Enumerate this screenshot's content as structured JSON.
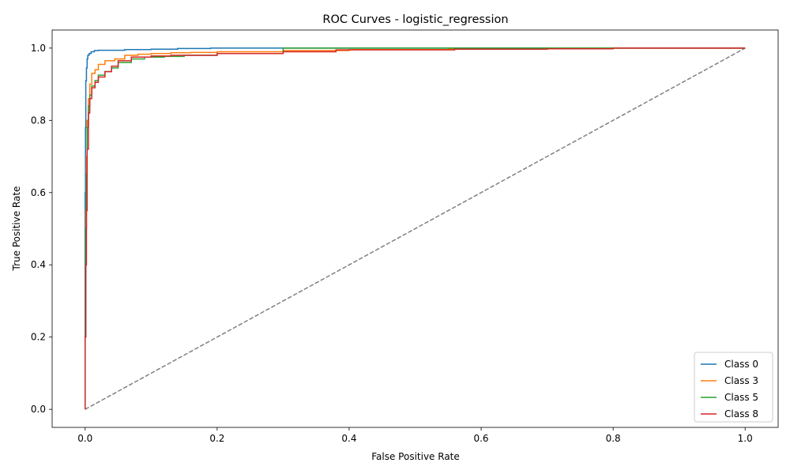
{
  "chart_data": {
    "type": "line",
    "title": "ROC Curves - logistic_regression",
    "xlabel": "False Positive Rate",
    "ylabel": "True Positive Rate",
    "xlim": [
      -0.05,
      1.05
    ],
    "ylim": [
      -0.05,
      1.05
    ],
    "x_ticks": [
      "0.0",
      "0.2",
      "0.4",
      "0.6",
      "0.8",
      "1.0"
    ],
    "y_ticks": [
      "0.0",
      "0.2",
      "0.4",
      "0.6",
      "0.8",
      "1.0"
    ],
    "grid": false,
    "legend": "lower-right",
    "diagonal": {
      "x": [
        0,
        1
      ],
      "y": [
        0,
        1
      ],
      "color": "#808080",
      "style": "dashed"
    },
    "series": [
      {
        "name": "Class 0",
        "color": "#1f77b4",
        "x": [
          0,
          0.0005,
          0.001,
          0.002,
          0.003,
          0.004,
          0.006,
          0.009,
          0.014,
          0.02,
          0.03,
          0.06,
          0.1,
          0.14,
          0.19,
          0.3,
          0.5,
          0.7,
          0.85,
          1.0
        ],
        "y": [
          0,
          0.6,
          0.78,
          0.91,
          0.945,
          0.97,
          0.98,
          0.985,
          0.99,
          0.993,
          0.994,
          0.994,
          0.996,
          0.997,
          0.999,
          1.0,
          1.0,
          1.0,
          1.0,
          1.0
        ]
      },
      {
        "name": "Class 3",
        "color": "#ff7f0e",
        "x": [
          0,
          0.001,
          0.002,
          0.003,
          0.005,
          0.007,
          0.01,
          0.015,
          0.02,
          0.03,
          0.045,
          0.06,
          0.08,
          0.1,
          0.13,
          0.16,
          0.2,
          0.3,
          0.4,
          0.55,
          0.7,
          0.8,
          1.0
        ],
        "y": [
          0,
          0.2,
          0.55,
          0.7,
          0.8,
          0.86,
          0.9,
          0.93,
          0.94,
          0.955,
          0.965,
          0.97,
          0.98,
          0.983,
          0.985,
          0.987,
          0.988,
          0.99,
          0.993,
          0.996,
          0.998,
          1.0,
          1.0
        ]
      },
      {
        "name": "Class 5",
        "color": "#2ca02c",
        "x": [
          0,
          0.001,
          0.002,
          0.003,
          0.005,
          0.007,
          0.01,
          0.015,
          0.02,
          0.03,
          0.04,
          0.05,
          0.07,
          0.09,
          0.12,
          0.15,
          0.2,
          0.3,
          0.4,
          0.55,
          0.7,
          1.0
        ],
        "y": [
          0,
          0.2,
          0.5,
          0.65,
          0.78,
          0.84,
          0.87,
          0.895,
          0.91,
          0.925,
          0.935,
          0.945,
          0.96,
          0.97,
          0.975,
          0.977,
          0.98,
          0.985,
          1.0,
          1.0,
          1.0,
          1.0
        ]
      },
      {
        "name": "Class 8",
        "color": "#d62728",
        "x": [
          0,
          0.001,
          0.002,
          0.003,
          0.005,
          0.007,
          0.01,
          0.015,
          0.02,
          0.03,
          0.04,
          0.05,
          0.07,
          0.1,
          0.13,
          0.2,
          0.3,
          0.38,
          0.56,
          0.7,
          0.8,
          0.95,
          1.0
        ],
        "y": [
          0,
          0.2,
          0.4,
          0.55,
          0.72,
          0.82,
          0.86,
          0.89,
          0.905,
          0.92,
          0.935,
          0.95,
          0.965,
          0.975,
          0.978,
          0.98,
          0.985,
          0.99,
          0.995,
          0.997,
          0.998,
          1.0,
          1.0
        ]
      }
    ]
  }
}
